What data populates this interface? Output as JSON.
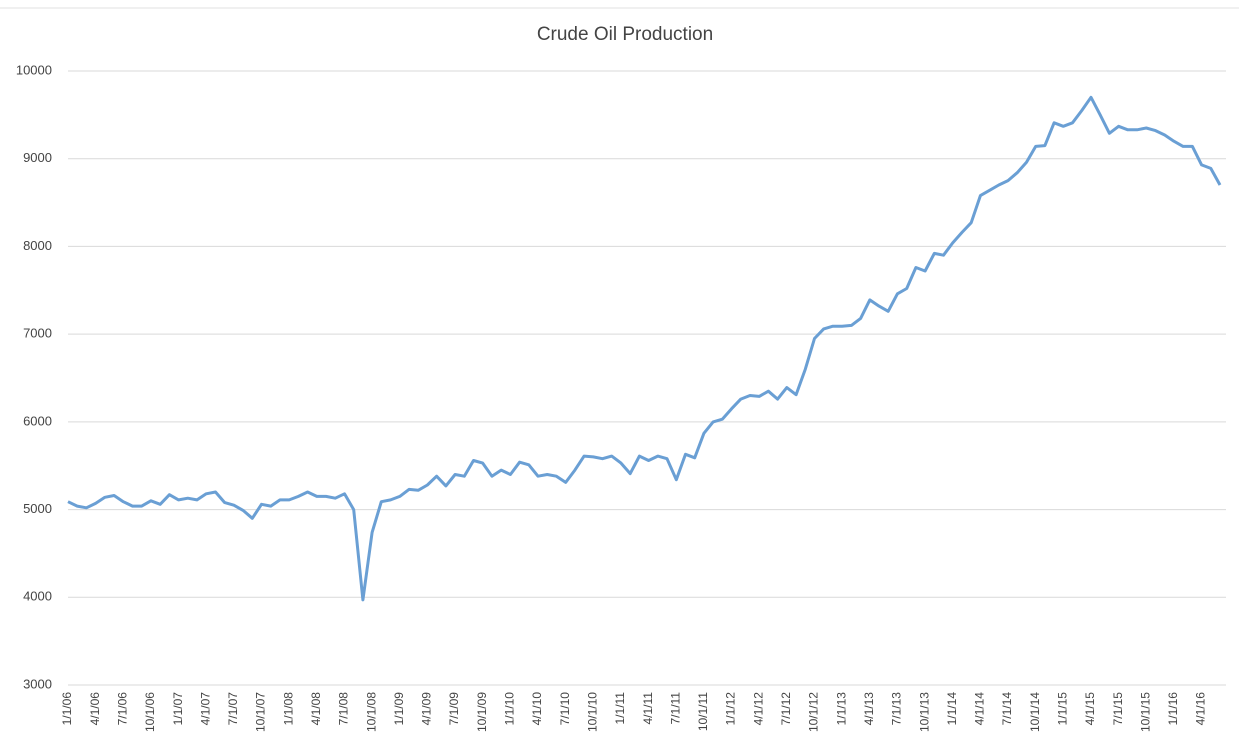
{
  "chart_data": {
    "type": "line",
    "title": "Crude Oil Production",
    "categories": [
      "1/1/06",
      null,
      null,
      "4/1/06",
      null,
      null,
      "7/1/06",
      null,
      null,
      "10/1/06",
      null,
      null,
      "1/1/07",
      null,
      null,
      "4/1/07",
      null,
      null,
      "7/1/07",
      null,
      null,
      "10/1/07",
      null,
      null,
      "1/1/08",
      null,
      null,
      "4/1/08",
      null,
      null,
      "7/1/08",
      null,
      null,
      "10/1/08",
      null,
      null,
      "1/1/09",
      null,
      null,
      "4/1/09",
      null,
      null,
      "7/1/09",
      null,
      null,
      "10/1/09",
      null,
      null,
      "1/1/10",
      null,
      null,
      "4/1/10",
      null,
      null,
      "7/1/10",
      null,
      null,
      "10/1/10",
      null,
      null,
      "1/1/11",
      null,
      null,
      "4/1/11",
      null,
      null,
      "7/1/11",
      null,
      null,
      "10/1/11",
      null,
      null,
      "1/1/12",
      null,
      null,
      "4/1/12",
      null,
      null,
      "7/1/12",
      null,
      null,
      "10/1/12",
      null,
      null,
      "1/1/13",
      null,
      null,
      "4/1/13",
      null,
      null,
      "7/1/13",
      null,
      null,
      "10/1/13",
      null,
      null,
      "1/1/14",
      null,
      null,
      "4/1/14",
      null,
      null,
      "7/1/14",
      null,
      null,
      "10/1/14",
      null,
      null,
      "1/1/15",
      null,
      null,
      "4/1/15",
      null,
      null,
      "7/1/15",
      null,
      null,
      "10/1/15",
      null,
      null,
      "1/1/16",
      null,
      null,
      "4/1/16",
      null,
      null
    ],
    "series": [
      {
        "name": "Crude Oil Production",
        "color": "#6a9fd4",
        "values": [
          5090,
          5040,
          5020,
          5070,
          5140,
          5160,
          5090,
          5040,
          5040,
          5100,
          5060,
          5170,
          5110,
          5130,
          5110,
          5180,
          5200,
          5080,
          5050,
          4990,
          4900,
          5060,
          5040,
          5110,
          5110,
          5150,
          5200,
          5150,
          5150,
          5130,
          5180,
          5000,
          3970,
          4740,
          5090,
          5110,
          5150,
          5230,
          5220,
          5280,
          5380,
          5270,
          5400,
          5380,
          5560,
          5530,
          5380,
          5450,
          5400,
          5540,
          5510,
          5380,
          5400,
          5380,
          5310,
          5450,
          5610,
          5600,
          5580,
          5610,
          5530,
          5410,
          5610,
          5560,
          5610,
          5580,
          5340,
          5630,
          5590,
          5870,
          6000,
          6030,
          6150,
          6260,
          6300,
          6290,
          6350,
          6260,
          6390,
          6310,
          6600,
          6950,
          7060,
          7090,
          7090,
          7100,
          7180,
          7390,
          7320,
          7260,
          7460,
          7520,
          7760,
          7720,
          7920,
          7900,
          8040,
          8160,
          8270,
          8580,
          8640,
          8700,
          8750,
          8840,
          8960,
          9140,
          9150,
          9410,
          9370,
          9410,
          9550,
          9700,
          9500,
          9290,
          9370,
          9330,
          9330,
          9350,
          9320,
          9270,
          9200,
          9140,
          9140,
          8930,
          8890,
          8700
        ]
      }
    ],
    "ylim": [
      3000,
      10000
    ],
    "yticks": [
      3000,
      4000,
      5000,
      6000,
      7000,
      8000,
      9000,
      10000
    ],
    "grid": true
  }
}
